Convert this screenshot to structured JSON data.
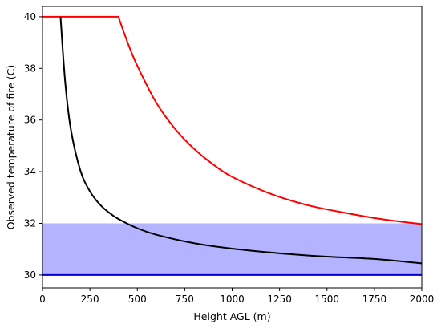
{
  "chart_data": {
    "type": "line",
    "title": "",
    "xlabel": "Height AGL (m)",
    "ylabel": "Observed temperature of fire (C)",
    "xlim": [
      0,
      2000
    ],
    "ylim": [
      29.5,
      40.4
    ],
    "xticks": [
      0,
      250,
      500,
      750,
      1000,
      1250,
      1500,
      1750,
      2000
    ],
    "yticks": [
      30,
      32,
      34,
      36,
      38,
      40
    ],
    "grid": false,
    "legend": "none",
    "band": {
      "y_from": 30,
      "y_to": 32,
      "color": "#b3b3ff"
    },
    "series": [
      {
        "color": "#ff0000",
        "x": [
          0,
          400,
          450,
          500,
          600,
          700,
          800,
          900,
          1000,
          1200,
          1400,
          1600,
          1800,
          2000
        ],
        "y": [
          40,
          40,
          38.98,
          38.1,
          36.67,
          35.65,
          34.88,
          34.28,
          33.8,
          33.15,
          32.7,
          32.4,
          32.15,
          31.97
        ]
      },
      {
        "color": "#000000",
        "x": [
          95,
          120,
          150,
          200,
          250,
          300,
          350,
          400,
          500,
          600,
          800,
          1000,
          1250,
          1500,
          1750,
          2000
        ],
        "y": [
          40,
          37.45,
          35.62,
          34.04,
          33.24,
          32.75,
          32.42,
          32.17,
          31.81,
          31.56,
          31.23,
          31.02,
          30.84,
          30.71,
          30.62,
          30.45
        ]
      },
      {
        "color": "#0000cc",
        "x": [
          0,
          2000
        ],
        "y": [
          30,
          30
        ]
      }
    ]
  }
}
